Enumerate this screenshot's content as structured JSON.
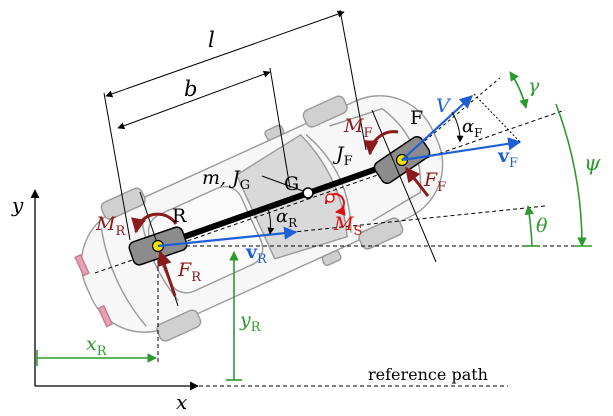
{
  "figure": {
    "dims": {
      "l": "l",
      "b": "b"
    },
    "body": {
      "mass_inertia": "m, J",
      "mass_inertia_sub": "G",
      "cog": "G"
    },
    "rear": {
      "name": "R",
      "moment": "M",
      "moment_sub": "R",
      "force": "F",
      "force_sub": "R",
      "slip": "α",
      "slip_sub": "R",
      "velocity": "v",
      "velocity_sub": "R"
    },
    "front": {
      "name": "F",
      "moment": "M",
      "moment_sub": "F",
      "inertia": "J",
      "inertia_sub": "F",
      "force": "F",
      "force_sub": "F",
      "slip": "α",
      "slip_sub": "F",
      "velocity": "v",
      "velocity_sub": "F",
      "speed": "V"
    },
    "steer": {
      "moment": "M",
      "moment_sub": "S"
    },
    "angles": {
      "gamma": "γ",
      "psi": "ψ",
      "theta": "θ"
    },
    "coords": {
      "x_axis": "x",
      "y_axis": "y",
      "xR": "x",
      "xR_sub": "R",
      "yR": "y",
      "yR_sub": "R"
    },
    "path_label": "reference path",
    "colors": {
      "blue": "#1f5fd6",
      "darkred": "#8b1a1a",
      "red": "#e01010",
      "green": "#2e9a2e",
      "car_outline": "#9a9a9a",
      "wheel_fill": "#bdbdbd",
      "node": "#f5e400"
    }
  }
}
